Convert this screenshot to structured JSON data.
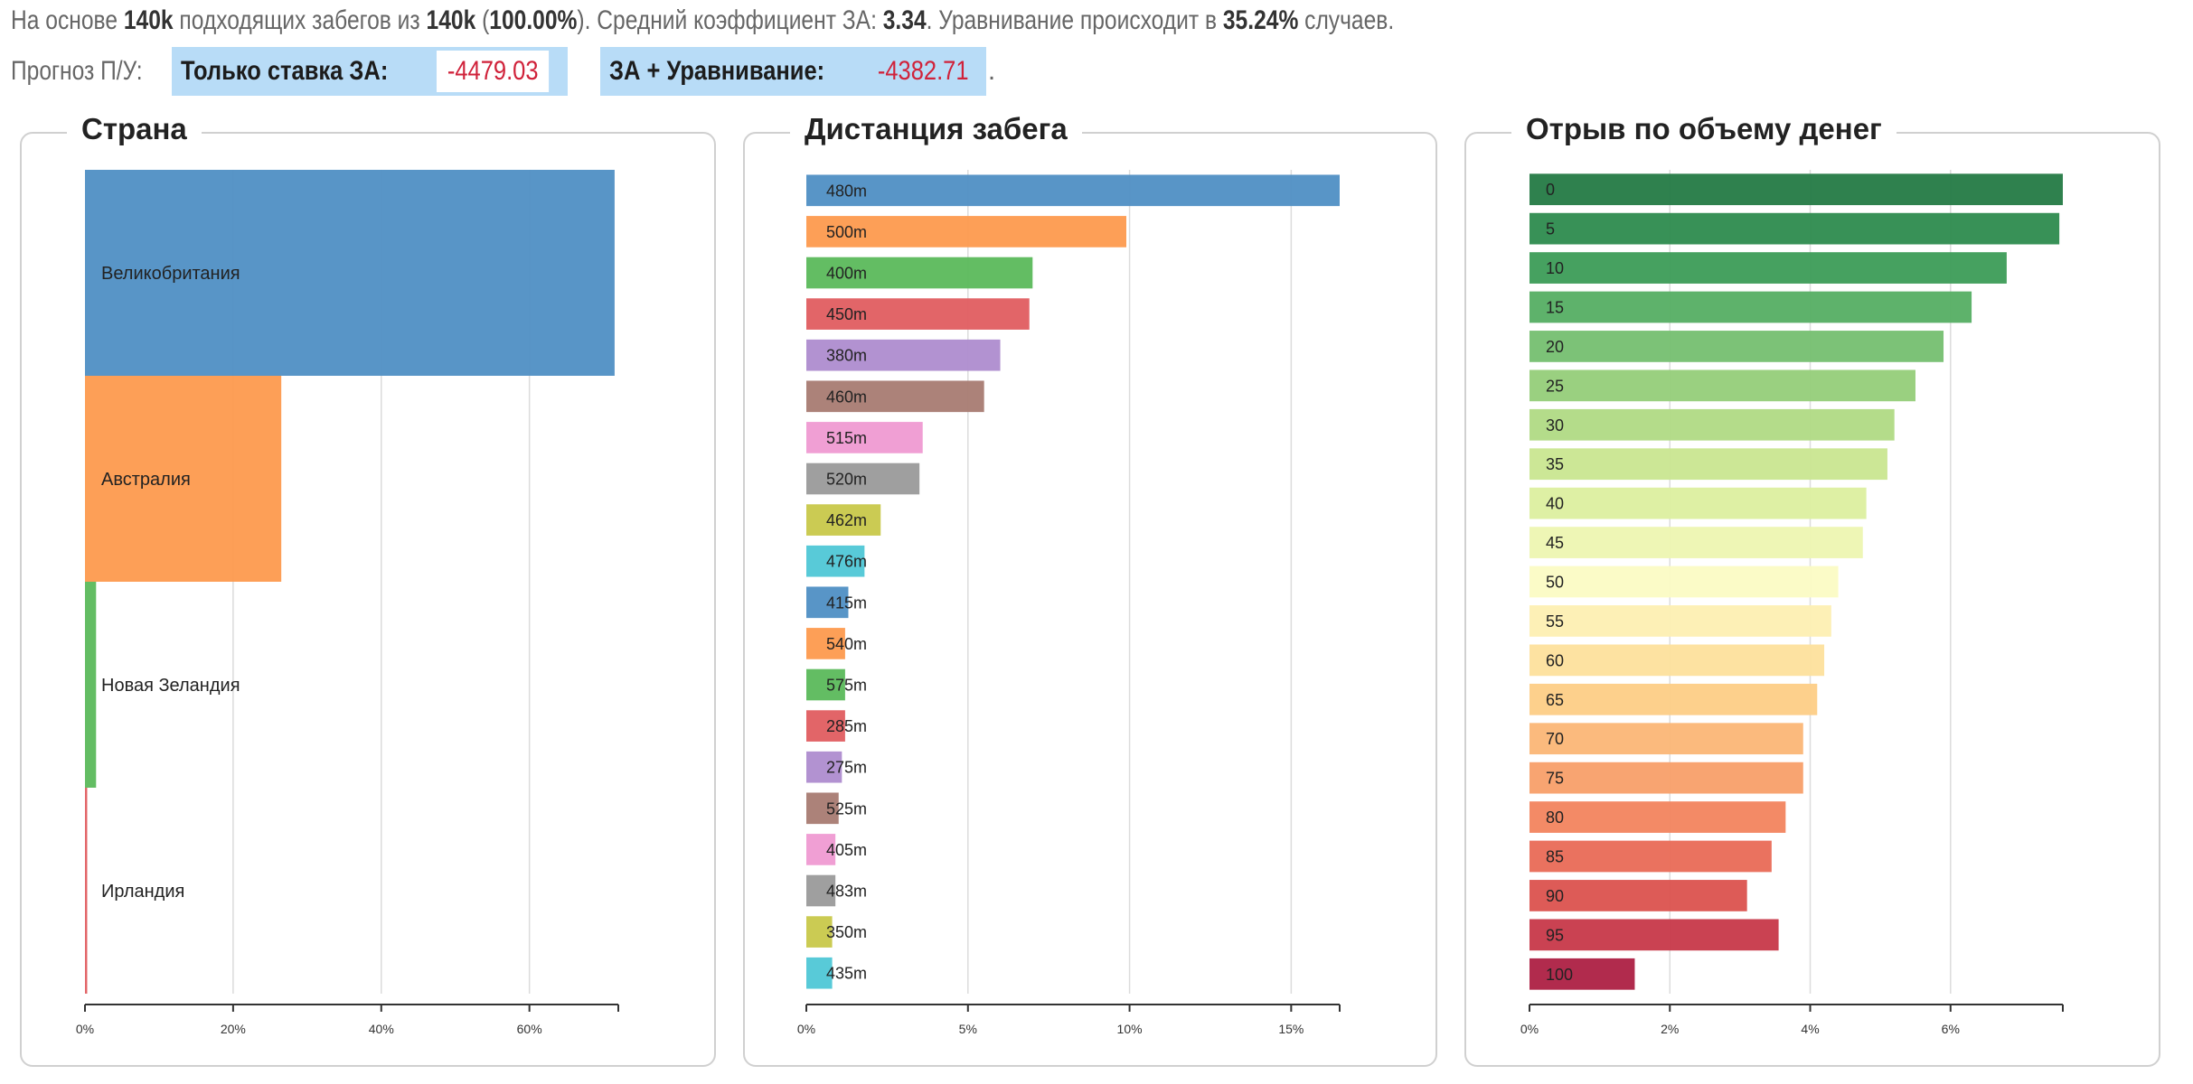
{
  "summary": {
    "p1": "На основе ",
    "matches": "140k",
    "p2": " подходящих забегов из ",
    "total": "140k",
    "p3": " (",
    "pct": "100.00%",
    "p4": "). Средний коэффициент ЗА: ",
    "avg_odds": "3.34",
    "p5": ". Уравнивание происходит в ",
    "equal_pct": "35.24%",
    "p6": " случаев."
  },
  "forecast": {
    "label": "Прогноз П/У:",
    "only_back_label": "Только ставка ЗА:",
    "only_back_value": "-4479.03",
    "back_equal_label": "ЗА + Уравнивание:",
    "back_equal_value": "-4382.71",
    "end_dot": "."
  },
  "chart_data": [
    {
      "type": "bar",
      "orientation": "horizontal",
      "title": "Страна",
      "categories": [
        "Великобритания",
        "Австралия",
        "Новая Зеландия",
        "Ирландия"
      ],
      "values": [
        71.5,
        26.5,
        1.5,
        0.3
      ],
      "colors": [
        "#4f8fc4",
        "#fd9a4e",
        "#5bb95b",
        "#e05d60"
      ],
      "xlim": [
        0,
        72
      ],
      "ticks": [
        0,
        20,
        40,
        60
      ],
      "tick_labels": [
        "0%",
        "20%",
        "40%",
        "60%"
      ],
      "label_position": "inside"
    },
    {
      "type": "bar",
      "orientation": "horizontal",
      "title": "Дистанция забега",
      "categories": [
        "480m",
        "500m",
        "400m",
        "450m",
        "380m",
        "460m",
        "515m",
        "520m",
        "462m",
        "476m",
        "415m",
        "540m",
        "575m",
        "285m",
        "275m",
        "525m",
        "405m",
        "483m",
        "350m",
        "435m"
      ],
      "values": [
        16.5,
        9.9,
        7.0,
        6.9,
        6.0,
        5.5,
        3.6,
        3.5,
        2.3,
        1.8,
        1.3,
        1.2,
        1.2,
        1.2,
        1.1,
        1.0,
        0.9,
        0.9,
        0.8,
        0.8
      ],
      "colors": [
        "#4f8fc4",
        "#fd9a4e",
        "#5bb95b",
        "#e05d60",
        "#ae8ccf",
        "#a87b72",
        "#ef9ad2",
        "#9a9a9a",
        "#c8c84a",
        "#4fc7d6",
        "#4f8fc4",
        "#fd9a4e",
        "#5bb95b",
        "#e05d60",
        "#ae8ccf",
        "#a87b72",
        "#ef9ad2",
        "#9a9a9a",
        "#c8c84a",
        "#4fc7d6"
      ],
      "xlim": [
        0,
        16.5
      ],
      "ticks": [
        0,
        5,
        10,
        15
      ],
      "tick_labels": [
        "0%",
        "5%",
        "10%",
        "15%"
      ],
      "label_position": "inside"
    },
    {
      "type": "bar",
      "orientation": "horizontal",
      "title": "Отрыв по объему денег",
      "categories": [
        "0",
        "5",
        "10",
        "15",
        "20",
        "25",
        "30",
        "35",
        "40",
        "45",
        "50",
        "55",
        "60",
        "65",
        "70",
        "75",
        "80",
        "85",
        "90",
        "95",
        "100"
      ],
      "values": [
        7.6,
        7.55,
        6.8,
        6.3,
        5.9,
        5.5,
        5.2,
        5.1,
        4.8,
        4.75,
        4.4,
        4.3,
        4.2,
        4.1,
        3.9,
        3.9,
        3.65,
        3.45,
        3.1,
        3.55,
        1.5
      ],
      "colors": [
        "#247a45",
        "#2d8b4e",
        "#3c9c57",
        "#55ae63",
        "#75bf70",
        "#95cd79",
        "#b0da84",
        "#c9e690",
        "#dcef9f",
        "#edf6b1",
        "#fbfbc4",
        "#fdefb2",
        "#fde09c",
        "#fdce86",
        "#fbb676",
        "#f89f69",
        "#f2845e",
        "#e96a56",
        "#db524e",
        "#c73849",
        "#ad2043"
      ],
      "xlim": [
        0,
        7.6
      ],
      "ticks": [
        0,
        2,
        4,
        6
      ],
      "tick_labels": [
        "0%",
        "2%",
        "4%",
        "6%"
      ],
      "label_position": "inside"
    }
  ]
}
